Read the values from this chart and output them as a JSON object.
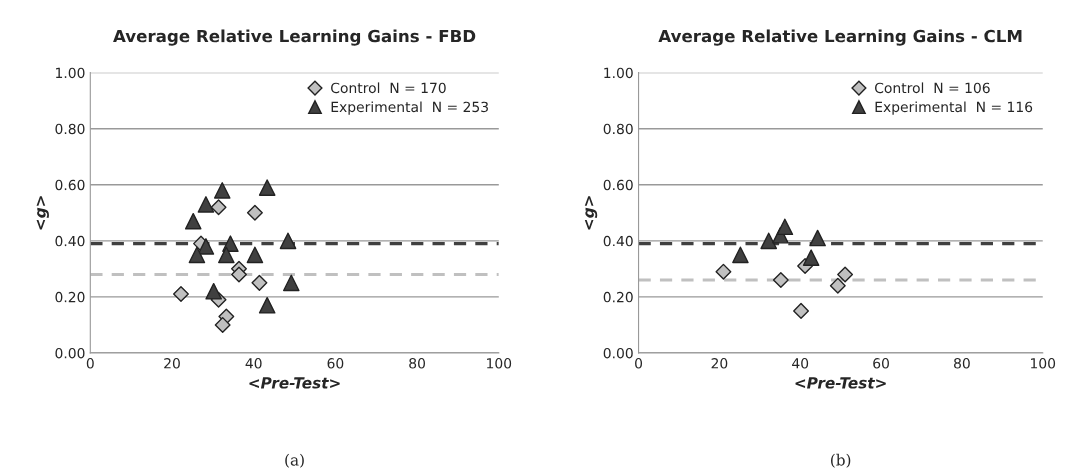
{
  "chart_data": [
    {
      "type": "scatter",
      "title": "Average Relative Learning Gains - FBD",
      "xlabel": "<Pre-Test>",
      "ylabel": "<g>",
      "xlim": [
        0,
        100
      ],
      "xticks": [
        0,
        20,
        40,
        60,
        80,
        100
      ],
      "ylim": [
        0,
        1
      ],
      "yticks": [
        {
          "value": 0,
          "label": "0.00"
        },
        {
          "value": 0.2,
          "label": "0.20"
        },
        {
          "value": 0.4,
          "label": "0.40"
        },
        {
          "value": 0.6,
          "label": "0.60"
        },
        {
          "value": 0.8,
          "label": "0.80"
        },
        {
          "value": 1,
          "label": "1.00"
        }
      ],
      "grid": "y",
      "legend": "top right",
      "annotations": [
        "(a)"
      ],
      "series": [
        {
          "name": "Control  N = 170",
          "color": "#c0c0c0",
          "marker": "diamond",
          "x": [
            22.2,
            31.4,
            40.3,
            27.1,
            36.4,
            36.4,
            41.4,
            31.4,
            33.3,
            32.4
          ],
          "values": [
            0.21,
            0.52,
            0.5,
            0.39,
            0.3,
            0.28,
            0.25,
            0.19,
            0.13,
            0.1
          ]
        },
        {
          "name": "Experimental  N = 253",
          "color": "#404040",
          "marker": "triangle",
          "x": [
            32.3,
            43.3,
            28.3,
            25.2,
            28.3,
            34.3,
            48.4,
            26.1,
            33.3,
            40.3,
            49.2,
            30.2,
            43.3
          ],
          "values": [
            0.58,
            0.59,
            0.53,
            0.47,
            0.38,
            0.39,
            0.4,
            0.35,
            0.35,
            0.35,
            0.25,
            0.22,
            0.17
          ]
        }
      ],
      "ref_lines": [
        {
          "axis": "y",
          "value": 0.39,
          "color": "#404040",
          "line_style": "dashed"
        },
        {
          "axis": "y",
          "value": 0.28,
          "color": "#c0c0c0",
          "line_style": "dashed"
        }
      ]
    },
    {
      "type": "scatter",
      "title": "Average Relative Learning Gains - CLM",
      "xlabel": "<Pre-Test>",
      "ylabel": "<g>",
      "xlim": [
        0,
        100
      ],
      "xticks": [
        0,
        20,
        40,
        60,
        80,
        100
      ],
      "ylim": [
        0,
        1
      ],
      "yticks": [
        {
          "value": 0,
          "label": "0.00"
        },
        {
          "value": 0.2,
          "label": "0.20"
        },
        {
          "value": 0.4,
          "label": "0.40"
        },
        {
          "value": 0.6,
          "label": "0.60"
        },
        {
          "value": 0.8,
          "label": "0.80"
        },
        {
          "value": 1,
          "label": "1.00"
        }
      ],
      "grid": "y",
      "legend": "top right",
      "annotations": [
        "(b)"
      ],
      "series": [
        {
          "name": "Control  N = 106",
          "color": "#c0c0c0",
          "marker": "diamond",
          "x": [
            21.0,
            35.2,
            41.2,
            51.1,
            49.3,
            40.2
          ],
          "values": [
            0.29,
            0.26,
            0.31,
            0.28,
            0.24,
            0.15
          ]
        },
        {
          "name": "Experimental  N = 116",
          "color": "#404040",
          "marker": "triangle",
          "x": [
            25.2,
            32.2,
            35.1,
            36.2,
            44.3,
            42.7
          ],
          "values": [
            0.35,
            0.4,
            0.42,
            0.45,
            0.41,
            0.34
          ]
        }
      ],
      "ref_lines": [
        {
          "axis": "y",
          "value": 0.39,
          "color": "#404040",
          "line_style": "dashed"
        },
        {
          "axis": "y",
          "value": 0.26,
          "color": "#c0c0c0",
          "line_style": "dashed"
        }
      ]
    }
  ]
}
